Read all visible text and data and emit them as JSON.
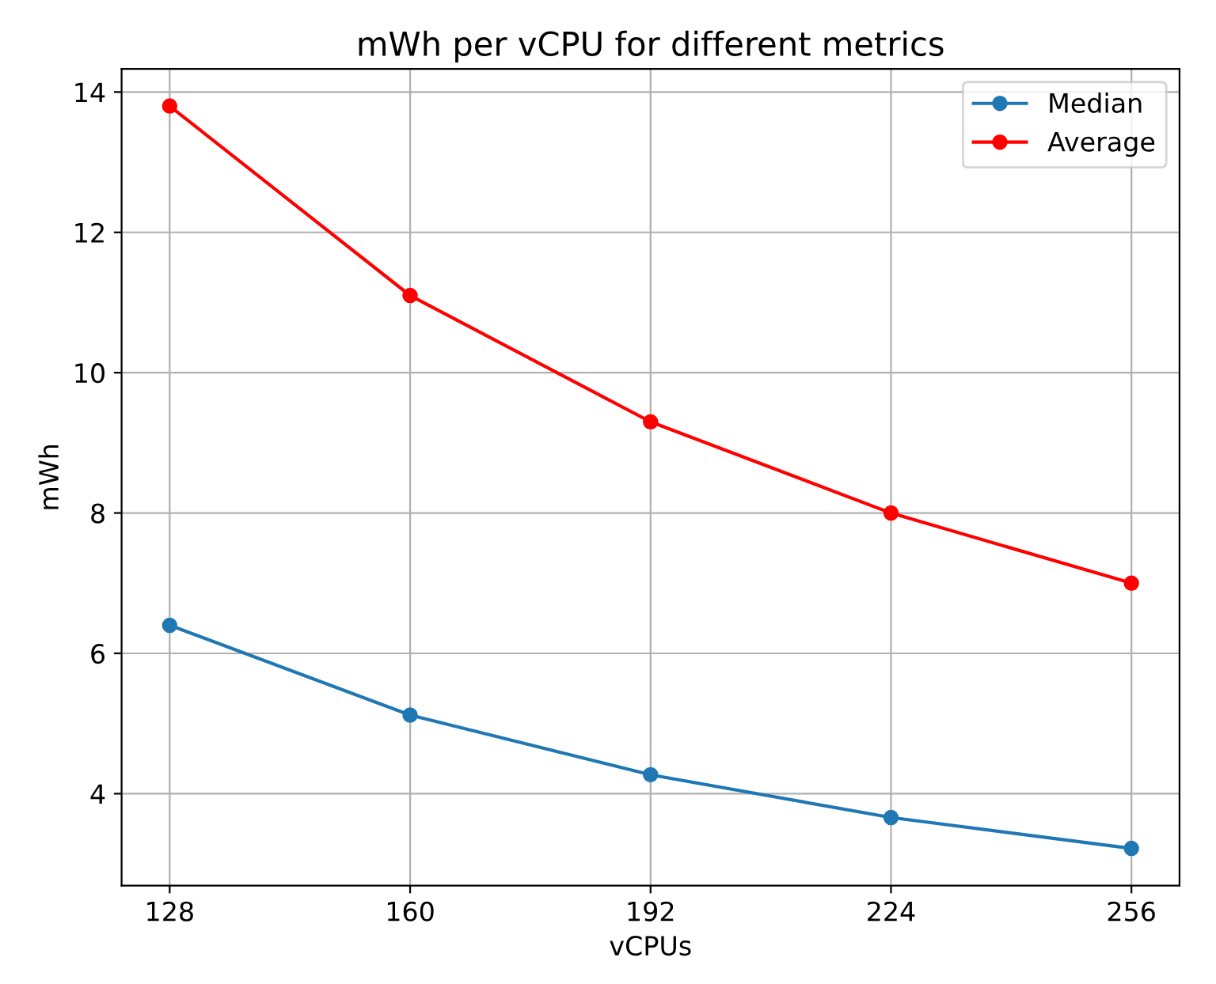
{
  "chart_data": {
    "type": "line",
    "title": "mWh per vCPU for different metrics",
    "xlabel": "vCPUs",
    "ylabel": "mWh",
    "x": [
      128,
      160,
      192,
      224,
      256
    ],
    "series": [
      {
        "name": "Median",
        "color": "#1f77b4",
        "values": [
          6.4,
          5.12,
          4.27,
          3.66,
          3.22
        ]
      },
      {
        "name": "Average",
        "color": "#ff0000",
        "values": [
          13.8,
          11.1,
          9.3,
          8.0,
          7.0
        ]
      }
    ],
    "xlim": [
      121.6,
      262.4
    ],
    "xticks": [
      128,
      160,
      192,
      224,
      256
    ],
    "ylim": [
      2.69,
      14.33
    ],
    "yticks": [
      4,
      6,
      8,
      10,
      12,
      14
    ],
    "grid": true,
    "legend": "top right",
    "marker": "circle",
    "line_style": "solid"
  }
}
